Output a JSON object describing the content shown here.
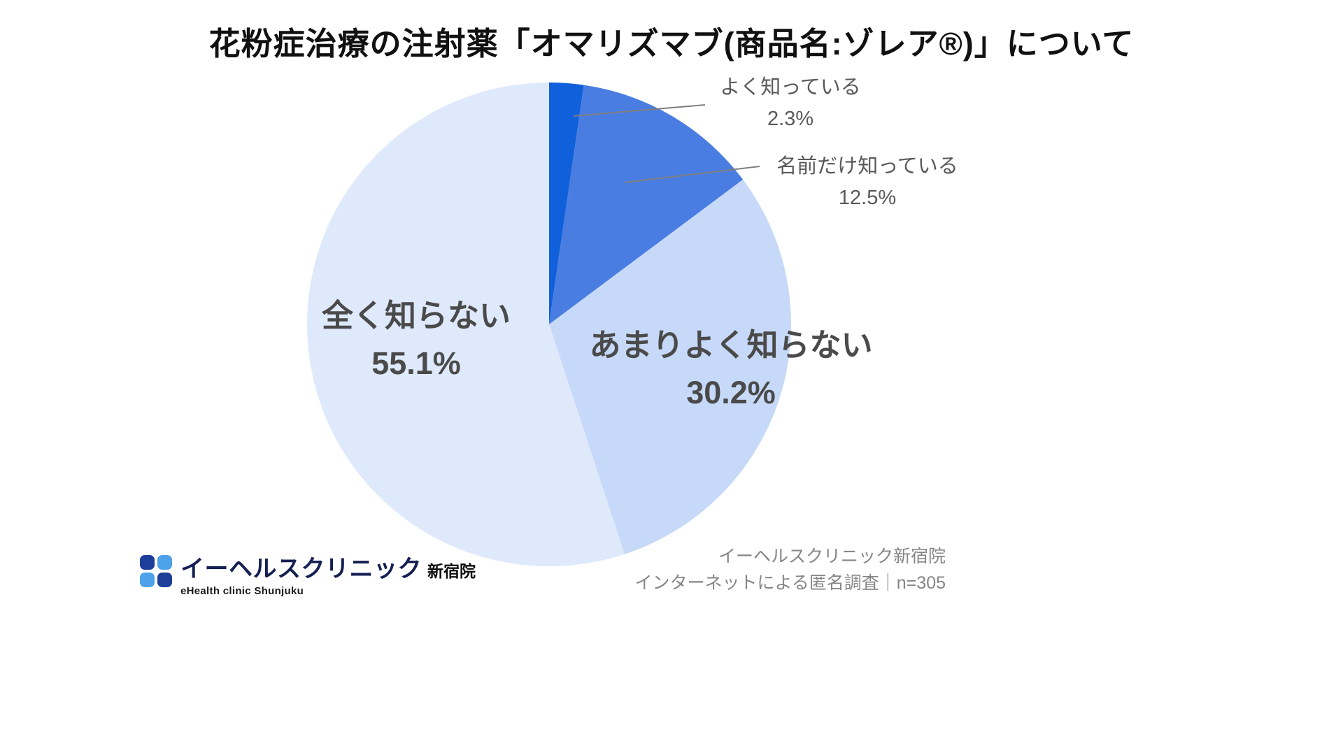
{
  "title": "花粉症治療の注射薬「オマリズマブ(商品名:ゾレア®)」について",
  "chart_data": {
    "type": "pie",
    "title": "花粉症治療の注射薬「オマリズマブ(商品名:ゾレア®)」について",
    "start_angle_deg": -90,
    "direction": "clockwise",
    "slices": [
      {
        "label": "よく知っている",
        "value": 2.3,
        "pct_label": "2.3%",
        "color": "#1160db",
        "label_style": "callout"
      },
      {
        "label": "名前だけ知っている",
        "value": 12.5,
        "pct_label": "12.5%",
        "color": "#4a7de2",
        "label_style": "callout"
      },
      {
        "label": "あまりよく知らない",
        "value": 30.2,
        "pct_label": "30.2%",
        "color": "#c7d9f8",
        "label_style": "inside"
      },
      {
        "label": "全く知らない",
        "value": 55.1,
        "pct_label": "55.1%",
        "color": "#dfe9fc",
        "label_style": "inside"
      }
    ],
    "legend_position": "none",
    "sample_note": "n=305"
  },
  "footer": {
    "logo": {
      "name": "イーヘルスクリニック",
      "branch": "新宿院",
      "subtitle": "eHealth clinic Shunjuku",
      "colors": [
        "#1d3e99",
        "#4da2e9",
        "#4da2e9",
        "#1d3e99"
      ]
    },
    "source_line1": "イーヘルスクリニック新宿院",
    "source_line2": "インターネットによる匿名調査｜n=305"
  }
}
